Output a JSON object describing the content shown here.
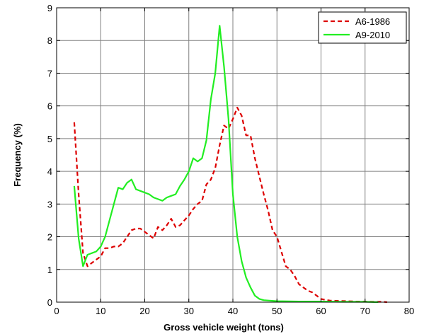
{
  "chart_data": {
    "type": "line",
    "title": "",
    "xlabel": "Gross vehicle weight (tons)",
    "ylabel": "Frequency (%)",
    "xlim": [
      0,
      80
    ],
    "ylim": [
      0,
      9
    ],
    "xticks": [
      0,
      10,
      20,
      30,
      40,
      50,
      60,
      70,
      80
    ],
    "yticks": [
      0,
      1,
      2,
      3,
      4,
      5,
      6,
      7,
      8,
      9
    ],
    "grid": true,
    "legend_position": "top-right",
    "series": [
      {
        "name": "A6-1986",
        "color": "#dd0000",
        "line_style": "dashed",
        "x": [
          4,
          5,
          6,
          7,
          8,
          9,
          10,
          11,
          12,
          13,
          14,
          15,
          16,
          17,
          18,
          19,
          20,
          21,
          22,
          23,
          24,
          25,
          26,
          27,
          28,
          29,
          30,
          31,
          32,
          33,
          34,
          35,
          36,
          37,
          38,
          39,
          40,
          41,
          42,
          43,
          44,
          45,
          46,
          47,
          48,
          49,
          50,
          51,
          52,
          53,
          54,
          55,
          56,
          57,
          58,
          59,
          60,
          61,
          62,
          64,
          66,
          68,
          70,
          72,
          74,
          75
        ],
        "y": [
          5.5,
          3.3,
          1.5,
          1.1,
          1.2,
          1.3,
          1.4,
          1.65,
          1.65,
          1.7,
          1.7,
          1.8,
          2.0,
          2.2,
          2.25,
          2.25,
          2.15,
          2.05,
          1.95,
          2.3,
          2.2,
          2.35,
          2.55,
          2.3,
          2.35,
          2.5,
          2.65,
          2.85,
          3.0,
          3.1,
          3.6,
          3.75,
          4.1,
          4.8,
          5.4,
          5.3,
          5.6,
          5.95,
          5.7,
          5.1,
          5.1,
          4.4,
          3.85,
          3.3,
          2.8,
          2.2,
          2.0,
          1.55,
          1.1,
          1.0,
          0.8,
          0.55,
          0.45,
          0.35,
          0.3,
          0.2,
          0.1,
          0.07,
          0.05,
          0.04,
          0.03,
          0.02,
          0.02,
          0.01,
          0.01,
          0.0
        ]
      },
      {
        "name": "A9-2010",
        "color": "#22ee22",
        "line_style": "solid",
        "x": [
          4,
          5,
          6,
          7,
          8,
          9,
          10,
          11,
          12,
          13,
          14,
          15,
          16,
          17,
          18,
          19,
          20,
          21,
          22,
          23,
          24,
          25,
          26,
          27,
          28,
          29,
          30,
          31,
          32,
          33,
          34,
          35,
          36,
          37,
          38,
          39,
          40,
          41,
          42,
          43,
          44,
          45,
          46,
          47,
          48,
          50,
          55,
          60,
          65,
          70,
          73
        ],
        "y": [
          3.55,
          1.95,
          1.1,
          1.45,
          1.5,
          1.55,
          1.7,
          2.0,
          2.5,
          3.0,
          3.5,
          3.45,
          3.65,
          3.75,
          3.45,
          3.4,
          3.35,
          3.3,
          3.2,
          3.15,
          3.1,
          3.2,
          3.25,
          3.3,
          3.55,
          3.75,
          4.0,
          4.4,
          4.3,
          4.4,
          4.95,
          6.2,
          7.0,
          8.45,
          7.2,
          5.6,
          3.3,
          2.0,
          1.25,
          0.75,
          0.45,
          0.2,
          0.1,
          0.06,
          0.05,
          0.03,
          0.02,
          0.02,
          0.01,
          0.01,
          0.0
        ]
      }
    ]
  }
}
